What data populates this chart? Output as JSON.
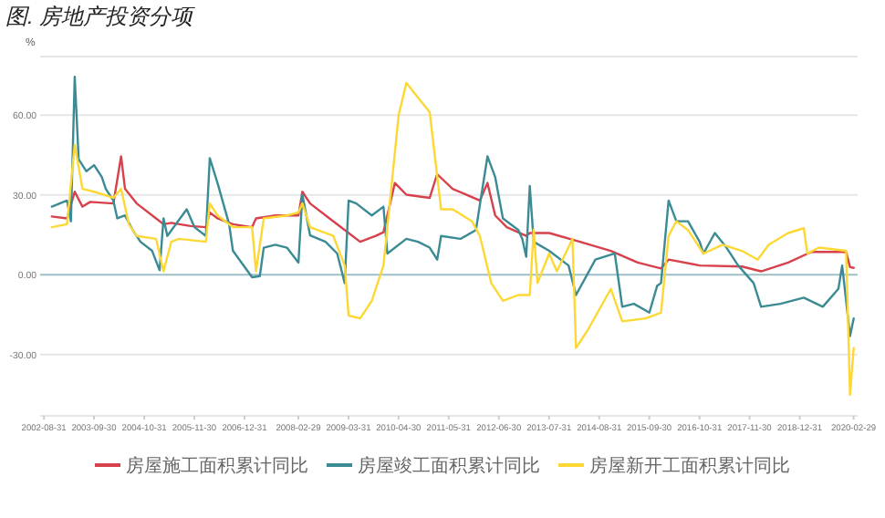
{
  "chart_data": {
    "type": "line",
    "title": "图. 房地产投资分项",
    "ylabel": "%",
    "xlim": [
      "2002-08",
      "2020-04"
    ],
    "xticks": [
      "2002-08-31",
      "2003-09-30",
      "2004-10-31",
      "2005-11-30",
      "2006-12-31",
      "2008-02-29",
      "2009-03-31",
      "2010-04-30",
      "2011-05-31",
      "2012-06-30",
      "2013-07-31",
      "2014-08-31",
      "2015-09-30",
      "2016-10-31",
      "2017-11-30",
      "2018-12-31",
      "2020-02-29"
    ],
    "ylim": [
      -53,
      82
    ],
    "yticks": [
      {
        "value": -30,
        "label": "-30.00"
      },
      {
        "value": 0,
        "label": "0.00"
      },
      {
        "value": 30,
        "label": "30.00"
      },
      {
        "value": 60,
        "label": "60.00"
      }
    ],
    "grid": "y",
    "legend": "bottom",
    "series": [
      {
        "name": "房屋施工面积累计同比",
        "color": "#d7414b",
        "x": [
          "2002-11",
          "2003-03",
          "2003-05",
          "2003-07",
          "2003-09",
          "2004-03",
          "2004-05",
          "2004-06",
          "2004-09",
          "2005-02",
          "2005-04",
          "2005-06",
          "2005-11",
          "2006-03",
          "2006-04",
          "2006-06",
          "2006-10",
          "2007-03",
          "2007-04",
          "2007-09",
          "2008-03",
          "2008-04",
          "2008-06",
          "2008-11",
          "2009-04",
          "2009-07",
          "2009-11",
          "2010-01",
          "2010-04",
          "2010-07",
          "2011-01",
          "2011-03",
          "2011-07",
          "2012-02",
          "2012-04",
          "2012-06",
          "2012-09",
          "2013-02",
          "2013-03",
          "2013-08",
          "2014-04",
          "2014-12",
          "2015-07",
          "2016-01",
          "2016-03",
          "2016-11",
          "2017-10",
          "2018-03",
          "2018-10",
          "2019-04",
          "2020-01",
          "2020-02",
          "2020-03"
        ],
        "values": [
          21.9,
          21.2,
          31.2,
          25.6,
          27.4,
          26.8,
          44.5,
          32.3,
          26.8,
          21.2,
          19.0,
          19.5,
          18.3,
          17.9,
          23.4,
          21.2,
          19.0,
          17.9,
          21.2,
          22.3,
          22.3,
          31.2,
          26.8,
          21.2,
          15.7,
          12.4,
          14.6,
          16.0,
          34.5,
          30.1,
          28.9,
          37.8,
          32.3,
          27.9,
          34.5,
          22.3,
          17.9,
          14.6,
          15.7,
          15.7,
          12.4,
          9.0,
          4.6,
          2.4,
          5.7,
          3.5,
          3.1,
          1.3,
          4.6,
          8.6,
          8.6,
          2.9,
          2.6
        ]
      },
      {
        "name": "房屋竣工面积累计同比",
        "color": "#3b8b94",
        "x": [
          "2002-11",
          "2003-03",
          "2003-04",
          "2003-05",
          "2003-06",
          "2003-08",
          "2003-10",
          "2003-12",
          "2004-01",
          "2004-03",
          "2004-04",
          "2004-06",
          "2004-08",
          "2004-10",
          "2005-01",
          "2005-03",
          "2005-04",
          "2005-05",
          "2005-10",
          "2005-12",
          "2006-03",
          "2006-04",
          "2006-06",
          "2006-09",
          "2006-10",
          "2007-03",
          "2007-05",
          "2007-06",
          "2007-09",
          "2007-12",
          "2008-03",
          "2008-04",
          "2008-06",
          "2008-10",
          "2009-01",
          "2009-03",
          "2009-04",
          "2009-06",
          "2009-10",
          "2010-01",
          "2010-02",
          "2010-07",
          "2010-10",
          "2011-01",
          "2011-03",
          "2011-04",
          "2011-09",
          "2012-01",
          "2012-04",
          "2012-06",
          "2012-08",
          "2012-12",
          "2013-01",
          "2013-02",
          "2013-03",
          "2013-04",
          "2013-08",
          "2014-01",
          "2014-03",
          "2014-08",
          "2015-01",
          "2015-03",
          "2015-06",
          "2015-10",
          "2015-12",
          "2016-01",
          "2016-03",
          "2016-05",
          "2016-08",
          "2016-11",
          "2016-12",
          "2017-03",
          "2017-06",
          "2017-09",
          "2018-01",
          "2018-03",
          "2018-08",
          "2019-02",
          "2019-07",
          "2019-11",
          "2019-12",
          "2020-02",
          "2020-03"
        ],
        "values": [
          25.6,
          27.9,
          20.1,
          74.4,
          43.4,
          38.9,
          41.2,
          36.7,
          32.3,
          27.9,
          21.2,
          22.3,
          16.8,
          12.4,
          9.0,
          1.7,
          21.2,
          14.6,
          24.6,
          17.9,
          14.6,
          43.8,
          34.5,
          19.0,
          9.0,
          -0.9,
          -0.5,
          10.2,
          11.3,
          10.2,
          4.6,
          30.1,
          14.8,
          12.4,
          8.0,
          -3.1,
          27.9,
          26.8,
          22.3,
          25.6,
          8.0,
          13.5,
          12.4,
          10.2,
          5.7,
          14.6,
          13.5,
          16.8,
          44.5,
          36.7,
          21.2,
          16.8,
          13.5,
          6.8,
          33.4,
          12.4,
          9.0,
          3.5,
          -7.6,
          5.7,
          8.0,
          -12.0,
          -10.9,
          -14.2,
          -4.2,
          -3.1,
          27.9,
          20.1,
          20.1,
          12.4,
          8.0,
          15.7,
          10.2,
          3.5,
          -3.1,
          -12.0,
          -10.9,
          -8.6,
          -12.0,
          -5.3,
          3.5,
          -23.0,
          -16.4
        ]
      },
      {
        "name": "房屋新开工面积累计同比",
        "color": "#fdd835",
        "x": [
          "2002-11",
          "2003-03",
          "2003-05",
          "2003-07",
          "2003-10",
          "2004-03",
          "2004-05",
          "2004-07",
          "2004-09",
          "2005-02",
          "2005-04",
          "2005-06",
          "2005-08",
          "2006-03",
          "2006-04",
          "2006-06",
          "2006-10",
          "2007-03",
          "2007-04",
          "2007-06",
          "2007-12",
          "2008-03",
          "2008-04",
          "2008-06",
          "2008-12",
          "2009-03",
          "2009-04",
          "2009-07",
          "2009-10",
          "2010-01",
          "2010-05",
          "2010-07",
          "2011-01",
          "2011-04",
          "2011-07",
          "2011-12",
          "2012-02",
          "2012-05",
          "2012-08",
          "2012-12",
          "2013-03",
          "2013-04",
          "2013-05",
          "2013-08",
          "2013-10",
          "2014-02",
          "2014-03",
          "2014-06",
          "2014-12",
          "2015-03",
          "2015-09",
          "2016-01",
          "2016-03",
          "2016-05",
          "2016-08",
          "2016-12",
          "2017-05",
          "2017-10",
          "2018-02",
          "2018-05",
          "2018-10",
          "2019-02",
          "2019-03",
          "2019-06",
          "2020-01",
          "2020-02",
          "2020-03"
        ],
        "values": [
          17.9,
          19.0,
          48.9,
          32.3,
          31.2,
          28.9,
          32.3,
          19.0,
          14.6,
          13.5,
          1.3,
          12.4,
          13.5,
          12.4,
          26.8,
          22.3,
          17.9,
          17.9,
          1.3,
          21.2,
          22.3,
          23.4,
          26.8,
          17.9,
          14.6,
          3.5,
          -15.3,
          -16.4,
          -9.8,
          3.5,
          60.0,
          72.1,
          61.1,
          24.6,
          24.6,
          20.1,
          14.6,
          -3.1,
          -9.8,
          -7.6,
          -7.6,
          17.0,
          -3.1,
          8.0,
          1.3,
          13.5,
          -27.5,
          -20.8,
          -5.3,
          -17.5,
          -16.4,
          -14.2,
          14.6,
          20.1,
          16.8,
          8.0,
          11.3,
          9.0,
          5.7,
          11.3,
          15.7,
          17.5,
          8.0,
          10.2,
          9.0,
          -45.1,
          -27.5
        ]
      }
    ]
  }
}
